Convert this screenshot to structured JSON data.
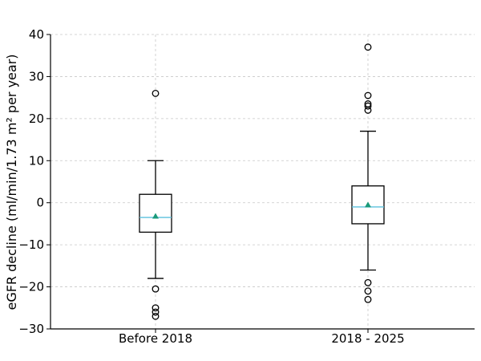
{
  "chart_data": {
    "type": "box",
    "title": "",
    "xlabel": "",
    "ylabel": "eGFR decline (ml/min/1.73 m² per year)",
    "ylim": [
      -30,
      40
    ],
    "yticks": [
      -30,
      -20,
      -10,
      0,
      10,
      20,
      30,
      40
    ],
    "ytick_labels": [
      "−30",
      "−20",
      "−10",
      "0",
      "10",
      "20",
      "30",
      "40"
    ],
    "grid": true,
    "categories": [
      "Before 2018",
      "2018 - 2025"
    ],
    "boxes": [
      {
        "label": "Before 2018",
        "whisker_low": -18,
        "q1": -7,
        "median": -3.5,
        "q3": 2,
        "whisker_high": 10,
        "mean": -3.2,
        "outliers": [
          26,
          -20.5,
          -25,
          -26,
          -27
        ]
      },
      {
        "label": "2018 - 2025",
        "whisker_low": -16,
        "q1": -5,
        "median": -1,
        "q3": 4,
        "whisker_high": 17,
        "mean": -0.5,
        "outliers": [
          37,
          25.5,
          23.5,
          23,
          22,
          -19,
          -21,
          -23
        ]
      }
    ],
    "colors": {
      "box": "#000000",
      "median": "#5bc0de",
      "mean": "#1a9a7a",
      "grid": "#c8c8c8"
    }
  }
}
